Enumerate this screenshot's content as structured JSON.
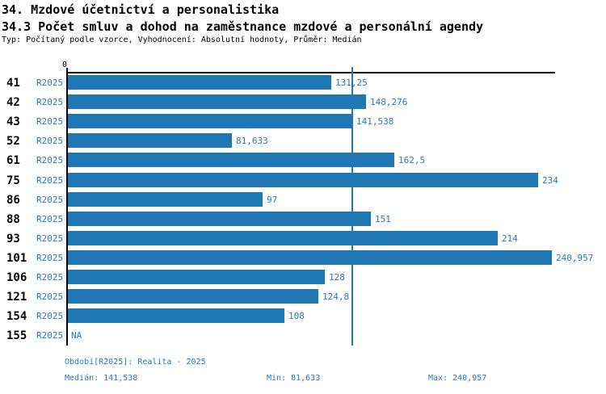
{
  "header": {
    "title_line1": "34. Mzdové účetnictví a personalistika",
    "title_line2": "34.3 Počet smluv a dohod na zaměstnance mzdové a personální agendy",
    "subtitle": "Typ: Počítaný podle vzorce, Vyhodnocení: Absolutní hodnoty, Průměr: Medián"
  },
  "colors": {
    "bar": "#1f77b4",
    "text_blue": "#2878b8",
    "axis": "#000000"
  },
  "chart_data": {
    "type": "bar",
    "orientation": "horizontal",
    "title": "34.3 Počet smluv a dohod na zaměstnance mzdové a personální agendy",
    "xlabel": "",
    "ylabel": "",
    "xlim": [
      0,
      240.957
    ],
    "grid": false,
    "origin_tick_label": "0",
    "series_label": "R2025",
    "categories": [
      "41",
      "42",
      "43",
      "52",
      "61",
      "75",
      "86",
      "88",
      "93",
      "101",
      "106",
      "121",
      "154",
      "155"
    ],
    "values": [
      131.25,
      148.276,
      141.538,
      81.633,
      162.5,
      234,
      97,
      151,
      214,
      240.957,
      128,
      124.8,
      108,
      null
    ],
    "value_labels": [
      "131,25",
      "148,276",
      "141,538",
      "81,633",
      "162,5",
      "234",
      "97",
      "151",
      "214",
      "240,957",
      "128",
      "124,8",
      "108",
      "NA"
    ],
    "reference_line": {
      "name": "median",
      "value": 141.538
    },
    "stats": {
      "median": 141.538,
      "min": 81.633,
      "max": 240.957
    }
  },
  "footer": {
    "period": "Období[R2025]: Realita - 2025",
    "median": "Medián: 141,538",
    "min": "Min: 81,633",
    "max": "Max: 240,957"
  }
}
